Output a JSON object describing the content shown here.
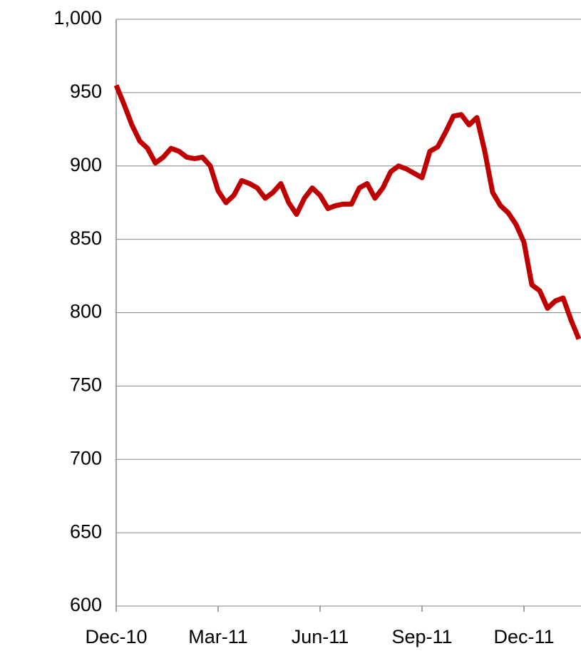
{
  "chart_data": {
    "type": "line",
    "categories": [
      "Dec-10",
      null,
      null,
      null,
      null,
      null,
      null,
      null,
      null,
      null,
      null,
      null,
      null,
      "Mar-11",
      null,
      null,
      null,
      null,
      null,
      null,
      null,
      null,
      null,
      null,
      null,
      null,
      "Jun-11",
      null,
      null,
      null,
      null,
      null,
      null,
      null,
      null,
      null,
      null,
      null,
      null,
      "Sep-11",
      null,
      null,
      null,
      null,
      null,
      null,
      null,
      null,
      null,
      null,
      null,
      null,
      "Dec-11",
      null,
      null,
      null,
      null,
      null,
      null,
      null
    ],
    "series": [
      {
        "color": "#c00000",
        "values": [
          955,
          942,
          928,
          917,
          912,
          902,
          906,
          912,
          910,
          906,
          905,
          906,
          900,
          883,
          875,
          880,
          890,
          888,
          885,
          878,
          882,
          888,
          875,
          867,
          878,
          885,
          880,
          871,
          873,
          874,
          874,
          885,
          888,
          878,
          885,
          896,
          900,
          898,
          895,
          892,
          910,
          913,
          923,
          934,
          935,
          928,
          933,
          910,
          882,
          873,
          868,
          860,
          848,
          819,
          815,
          803,
          808,
          810,
          795,
          782
        ]
      }
    ],
    "ylim": [
      600,
      1000
    ],
    "yticks": [
      600,
      650,
      700,
      750,
      800,
      850,
      900,
      950,
      {
        "value": 1000,
        "label": "1,000"
      }
    ],
    "grid": true
  }
}
